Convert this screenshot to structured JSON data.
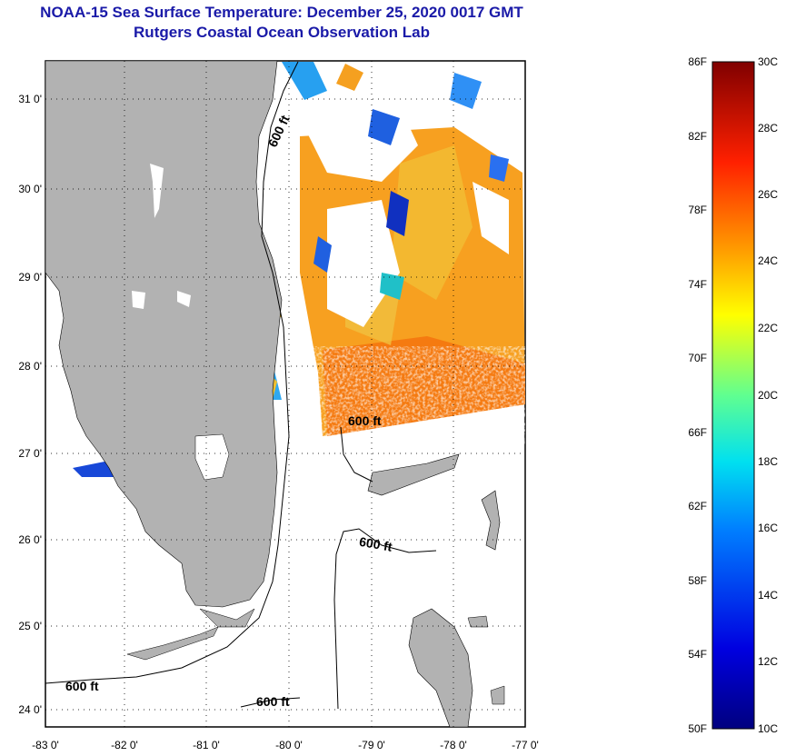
{
  "header": {
    "title": "NOAA-15 Sea Surface Temperature:  December 25, 2020 0017 GMT",
    "subtitle": "Rutgers Coastal Ocean Observation Lab"
  },
  "map": {
    "lat_labels": [
      "31 0'",
      "30 0'",
      "29 0'",
      "28 0'",
      "27 0'",
      "26 0'",
      "25 0'",
      "24 0'"
    ],
    "lon_labels": [
      "-83 0'",
      "-82 0'",
      "-81 0'",
      "-80 0'",
      "-79 0'",
      "-78 0'",
      "-77 0'"
    ],
    "contour_labels": [
      "600 ft",
      "600 ft",
      "600 ft",
      "600 ft",
      "600 ft"
    ],
    "colors": {
      "land": "#b2b2b2",
      "water": "#ffffff"
    }
  },
  "colorbar": {
    "f_labels": [
      "86F",
      "82F",
      "78F",
      "74F",
      "70F",
      "66F",
      "62F",
      "58F",
      "54F",
      "50F"
    ],
    "c_labels": [
      "30C",
      "28C",
      "26C",
      "24C",
      "22C",
      "20C",
      "18C",
      "16C",
      "14C",
      "12C",
      "10C"
    ]
  }
}
